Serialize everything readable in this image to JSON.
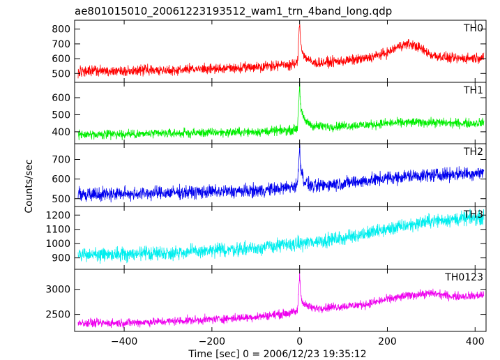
{
  "title": "ae801015010_20061223193512_wam1_trn_4band_long.qdp",
  "ylabel": "Counts/sec",
  "xlabel": "Time [sec] 0 = 2006/12/23 19:35:12",
  "x_range": [
    -513,
    425
  ],
  "x_ticks": [
    -400,
    -200,
    0,
    200,
    400
  ],
  "x_tick_labels": [
    "−400",
    "−200",
    "0",
    "200",
    "400"
  ],
  "chart_data": [
    {
      "type": "line",
      "name": "TH0",
      "color": "#ff0000",
      "ylim": [
        440,
        860
      ],
      "ticks": [
        500,
        600,
        700,
        800
      ],
      "tick_labels": [
        "500",
        "600",
        "700",
        "800"
      ],
      "x": [
        -505,
        -450,
        -400,
        -350,
        -300,
        -250,
        -200,
        -150,
        -100,
        -50,
        -20,
        -5,
        0,
        3,
        10,
        30,
        60,
        100,
        150,
        200,
        230,
        250,
        270,
        300,
        350,
        400,
        420
      ],
      "values": [
        510,
        520,
        515,
        525,
        520,
        530,
        530,
        535,
        545,
        555,
        560,
        570,
        850,
        690,
        620,
        570,
        575,
        585,
        600,
        640,
        690,
        700,
        680,
        625,
        600,
        605,
        610
      ],
      "noise": 28
    },
    {
      "type": "line",
      "name": "TH1",
      "color": "#00ee00",
      "ylim": [
        330,
        690
      ],
      "ticks": [
        400,
        500,
        600
      ],
      "tick_labels": [
        "400",
        "500",
        "600"
      ],
      "x": [
        -505,
        -400,
        -300,
        -200,
        -100,
        -50,
        -20,
        -5,
        0,
        3,
        10,
        30,
        60,
        100,
        150,
        200,
        250,
        300,
        350,
        400,
        420
      ],
      "values": [
        385,
        385,
        390,
        395,
        400,
        405,
        410,
        420,
        680,
        530,
        470,
        435,
        430,
        435,
        440,
        450,
        455,
        455,
        450,
        450,
        455
      ],
      "noise": 22
    },
    {
      "type": "line",
      "name": "TH2",
      "color": "#0000ee",
      "ylim": [
        460,
        780
      ],
      "ticks": [
        500,
        600,
        700
      ],
      "tick_labels": [
        "500",
        "600",
        "700"
      ],
      "x": [
        -505,
        -400,
        -300,
        -200,
        -100,
        -50,
        -20,
        -5,
        0,
        3,
        10,
        30,
        60,
        100,
        150,
        200,
        250,
        300,
        350,
        400,
        420
      ],
      "values": [
        525,
        525,
        530,
        535,
        540,
        550,
        560,
        570,
        770,
        650,
        590,
        560,
        570,
        580,
        590,
        605,
        615,
        620,
        625,
        630,
        635
      ],
      "noise": 28
    },
    {
      "type": "line",
      "name": "TH3",
      "color": "#00eeee",
      "ylim": [
        820,
        1260
      ],
      "ticks": [
        900,
        1000,
        1100,
        1200
      ],
      "tick_labels": [
        "900",
        "1000",
        "1100",
        "1200"
      ],
      "x": [
        -505,
        -400,
        -300,
        -200,
        -100,
        0,
        100,
        200,
        250,
        300,
        350,
        400,
        420
      ],
      "values": [
        920,
        925,
        935,
        950,
        970,
        1000,
        1040,
        1100,
        1130,
        1160,
        1170,
        1180,
        1185
      ],
      "noise": 40
    },
    {
      "type": "line",
      "name": "TH0123",
      "color": "#ee00ee",
      "ylim": [
        2160,
        3400
      ],
      "ticks": [
        2500,
        3000
      ],
      "tick_labels": [
        "2500",
        "3000"
      ],
      "x": [
        -505,
        -400,
        -300,
        -200,
        -100,
        -50,
        -20,
        -5,
        0,
        3,
        10,
        30,
        60,
        100,
        150,
        200,
        250,
        300,
        350,
        400,
        420
      ],
      "values": [
        2320,
        2330,
        2360,
        2400,
        2450,
        2500,
        2530,
        2560,
        3300,
        2850,
        2700,
        2620,
        2640,
        2660,
        2700,
        2800,
        2880,
        2920,
        2860,
        2870,
        2890
      ],
      "noise": 70
    }
  ]
}
